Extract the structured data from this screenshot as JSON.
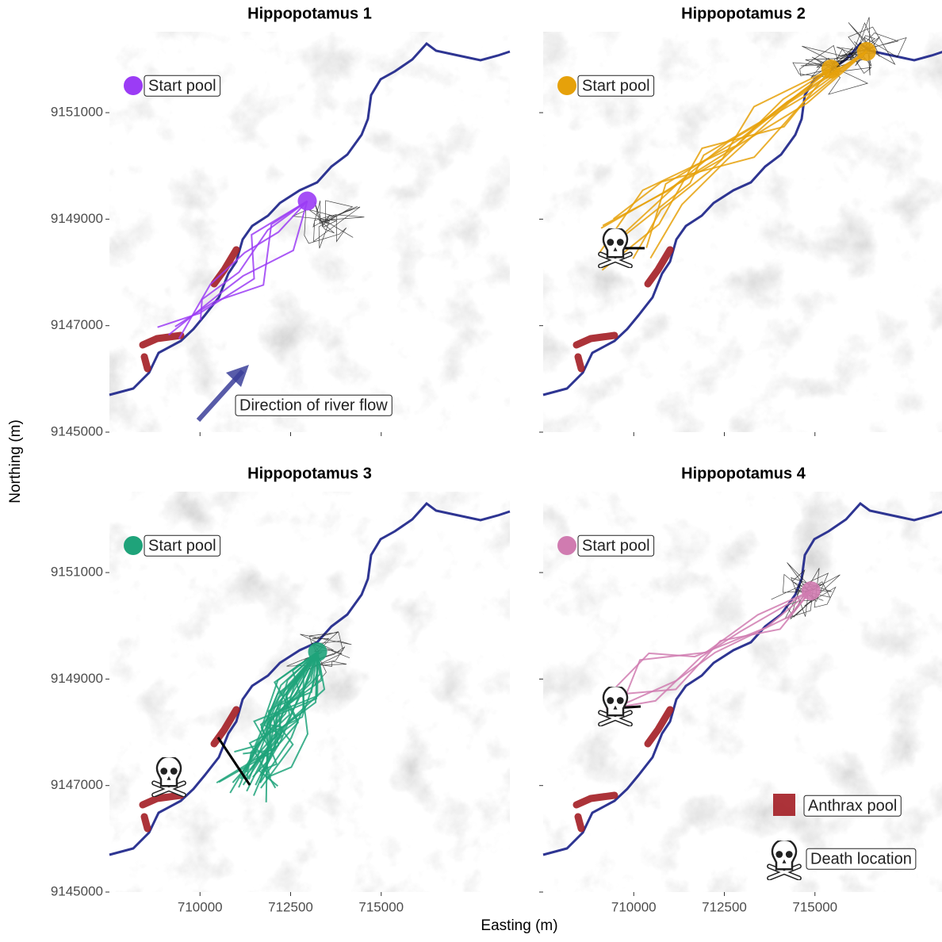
{
  "axes": {
    "xlabel": "Easting (m)",
    "ylabel": "Northing (m)",
    "xlim": [
      707500,
      718550
    ],
    "ylim": [
      9145000,
      9152520
    ],
    "xticks": [
      710000,
      712500,
      715000
    ],
    "yticks": [
      9145000,
      9147000,
      9149000,
      9151000
    ]
  },
  "chart_data": [
    {
      "type": "map",
      "title": "Hippopotamus 1",
      "color": "#9b3cf5",
      "start_pool": {
        "x": [
          712960
        ],
        "y": [
          9149340
        ]
      }
    },
    {
      "type": "map",
      "title": "Hippopotamus 2",
      "color": "#e6a10a",
      "start_pool": {
        "x": [
          715440,
          716425
        ],
        "y": [
          9151820,
          9152150
        ]
      }
    },
    {
      "type": "map",
      "title": "Hippopotamus 3",
      "color": "#1fa37a",
      "start_pool": {
        "x": [
          713245
        ],
        "y": [
          9149510
        ]
      }
    },
    {
      "type": "map",
      "title": "Hippopotamus 4",
      "color": "#d07bb0",
      "start_pool": {
        "x": [
          714890
        ],
        "y": [
          9150657
        ]
      }
    }
  ],
  "legend": {
    "start_pool": "Start pool",
    "river_flow": "Direction of river flow",
    "anthrax_pool": "Anthrax pool",
    "death_location": "Death location"
  }
}
